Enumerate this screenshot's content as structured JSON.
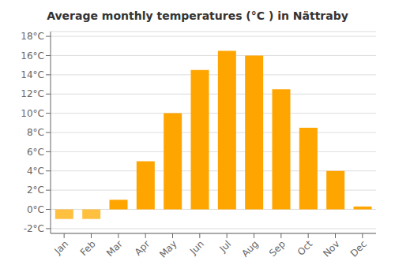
{
  "chart_data": {
    "type": "bar",
    "title": "Average monthly temperatures (°C ) in Nättraby",
    "categories": [
      "Jan",
      "Feb",
      "Mar",
      "Apr",
      "May",
      "Jun",
      "Jul",
      "Aug",
      "Sep",
      "Oct",
      "Nov",
      "Dec"
    ],
    "values": [
      -1.0,
      -1.0,
      1.0,
      5.0,
      10.0,
      14.5,
      16.5,
      16.0,
      12.5,
      8.5,
      4.0,
      0.3
    ],
    "colors": [
      "#FFC040",
      "#FFC040",
      "#FFA500",
      "#FFA500",
      "#FFA500",
      "#FFA500",
      "#FFA500",
      "#FFA500",
      "#FFA500",
      "#FFA500",
      "#FFA500",
      "#FFA500"
    ],
    "ylim": [
      -2.5,
      18.5
    ],
    "yticks": [
      {
        "value": -2,
        "label": "-2°C"
      },
      {
        "value": 0,
        "label": "0°C"
      },
      {
        "value": 2,
        "label": "2°C"
      },
      {
        "value": 4,
        "label": "4°C"
      },
      {
        "value": 6,
        "label": "6°C"
      },
      {
        "value": 8,
        "label": "8°C"
      },
      {
        "value": 10,
        "label": "10°C"
      },
      {
        "value": 12,
        "label": "12°C"
      },
      {
        "value": 14,
        "label": "14°C"
      },
      {
        "value": 16,
        "label": "16°C"
      },
      {
        "value": 18,
        "label": "18°C"
      }
    ],
    "grid": true
  }
}
